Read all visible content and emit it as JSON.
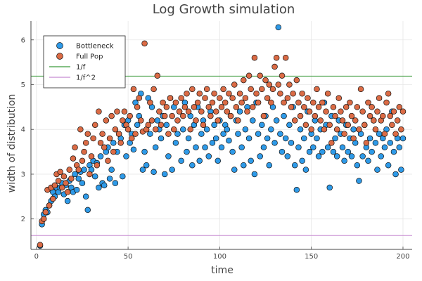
{
  "chart_data": {
    "type": "scatter",
    "title": "Log Growth simulation",
    "xlabel": "time",
    "ylabel": "width of distribution",
    "xlim": [
      -3,
      205
    ],
    "ylim": [
      1.32,
      6.42
    ],
    "x_ticks": [
      0,
      50,
      100,
      150,
      200
    ],
    "y_ticks": [
      2,
      3,
      4,
      5,
      6
    ],
    "grid": true,
    "legend_position": "top-left",
    "series": [
      {
        "name": "Bottleneck",
        "kind": "scatter",
        "color": "#2E9AE8",
        "x": [
          2,
          3,
          4,
          5,
          6,
          7,
          8,
          9,
          10,
          11,
          12,
          13,
          14,
          15,
          16,
          17,
          18,
          19,
          20,
          21,
          22,
          23,
          24,
          25,
          26,
          27,
          28,
          29,
          30,
          31,
          32,
          33,
          34,
          35,
          36,
          37,
          38,
          39,
          40,
          41,
          42,
          43,
          44,
          45,
          46,
          47,
          48,
          49,
          50,
          51,
          52,
          53,
          54,
          55,
          56,
          57,
          58,
          59,
          60,
          61,
          62,
          63,
          64,
          65,
          66,
          67,
          68,
          69,
          70,
          71,
          72,
          73,
          74,
          75,
          76,
          77,
          78,
          79,
          80,
          81,
          82,
          83,
          84,
          85,
          86,
          87,
          88,
          89,
          90,
          91,
          92,
          93,
          94,
          95,
          96,
          97,
          98,
          99,
          100,
          101,
          102,
          103,
          104,
          105,
          106,
          107,
          108,
          109,
          110,
          111,
          112,
          113,
          114,
          115,
          116,
          117,
          118,
          119,
          120,
          121,
          122,
          123,
          124,
          125,
          126,
          127,
          128,
          129,
          130,
          131,
          132,
          133,
          134,
          135,
          136,
          137,
          138,
          139,
          140,
          141,
          142,
          143,
          144,
          145,
          146,
          147,
          148,
          149,
          150,
          151,
          152,
          153,
          154,
          155,
          156,
          157,
          158,
          159,
          160,
          161,
          162,
          163,
          164,
          165,
          166,
          167,
          168,
          169,
          170,
          171,
          172,
          173,
          174,
          175,
          176,
          177,
          178,
          179,
          180,
          181,
          182,
          183,
          184,
          185,
          186,
          187,
          188,
          189,
          190,
          191,
          192,
          193,
          194,
          195,
          196,
          197,
          198,
          199,
          200
        ],
        "y": [
          1.4,
          1.88,
          2.1,
          2.2,
          2.15,
          2.3,
          2.4,
          2.6,
          2.5,
          2.7,
          2.6,
          2.7,
          2.8,
          2.55,
          2.75,
          2.4,
          2.85,
          2.7,
          2.6,
          3.0,
          2.65,
          2.9,
          3.05,
          2.8,
          3.1,
          2.5,
          2.2,
          3.2,
          3.1,
          3.3,
          2.95,
          3.25,
          2.7,
          3.4,
          2.8,
          2.75,
          3.5,
          3.6,
          2.9,
          3.1,
          3.7,
          2.8,
          3.5,
          3.9,
          3.8,
          2.95,
          4.1,
          3.4,
          4.2,
          3.7,
          3.9,
          3.55,
          4.6,
          4.1,
          4.3,
          4.8,
          3.1,
          3.5,
          3.2,
          4.7,
          3.9,
          4.5,
          3.05,
          3.6,
          4.2,
          4.0,
          3.8,
          4.3,
          3.0,
          4.1,
          3.4,
          4.7,
          3.1,
          4.5,
          3.7,
          3.9,
          4.4,
          3.3,
          4.0,
          4.6,
          3.5,
          3.8,
          4.3,
          3.2,
          4.1,
          3.6,
          4.5,
          3.3,
          3.9,
          4.2,
          3.6,
          4.0,
          3.4,
          4.4,
          3.7,
          4.1,
          3.8,
          3.3,
          4.2,
          3.6,
          3.9,
          4.1,
          4.0,
          3.75,
          4.3,
          3.5,
          3.1,
          4.2,
          3.9,
          4.4,
          3.6,
          3.2,
          4.0,
          4.5,
          3.8,
          3.3,
          4.2,
          3.0,
          4.6,
          3.9,
          3.4,
          4.1,
          3.6,
          4.3,
          3.8,
          3.2,
          4.0,
          4.5,
          3.7,
          4.2,
          6.28,
          3.9,
          3.5,
          4.3,
          3.8,
          3.4,
          4.1,
          3.7,
          4.5,
          3.2,
          2.65,
          3.6,
          4.0,
          3.3,
          3.8,
          3.1,
          4.4,
          3.5,
          3.9,
          3.6,
          4.2,
          3.8,
          3.4,
          4.0,
          3.5,
          4.6,
          4.1,
          3.6,
          2.7,
          4.3,
          3.5,
          3.8,
          3.4,
          4.2,
          3.9,
          3.6,
          3.3,
          4.1,
          3.5,
          3.8,
          3.4,
          4.0,
          3.7,
          3.2,
          2.85,
          3.9,
          3.4,
          4.1,
          3.6,
          3.3,
          3.8,
          3.5,
          4.2,
          3.7,
          3.1,
          3.9,
          3.4,
          3.8,
          3.6,
          4.0,
          3.2,
          3.7,
          4.4,
          3.5,
          3.0,
          3.8,
          3.6,
          3.1,
          3.8
        ]
      },
      {
        "name": "Full Pop",
        "kind": "scatter",
        "color": "#DB6B45",
        "x": [
          2,
          3,
          4,
          5,
          6,
          7,
          8,
          9,
          10,
          11,
          12,
          13,
          14,
          15,
          16,
          17,
          18,
          19,
          20,
          21,
          22,
          23,
          24,
          25,
          26,
          27,
          28,
          29,
          30,
          31,
          32,
          33,
          34,
          35,
          36,
          37,
          38,
          39,
          40,
          41,
          42,
          43,
          44,
          45,
          46,
          47,
          48,
          49,
          50,
          51,
          52,
          53,
          54,
          55,
          56,
          57,
          58,
          59,
          60,
          61,
          62,
          63,
          64,
          65,
          66,
          67,
          68,
          69,
          70,
          71,
          72,
          73,
          74,
          75,
          76,
          77,
          78,
          79,
          80,
          81,
          82,
          83,
          84,
          85,
          86,
          87,
          88,
          89,
          90,
          91,
          92,
          93,
          94,
          95,
          96,
          97,
          98,
          99,
          100,
          101,
          102,
          103,
          104,
          105,
          106,
          107,
          108,
          109,
          110,
          111,
          112,
          113,
          114,
          115,
          116,
          117,
          118,
          119,
          120,
          121,
          122,
          123,
          124,
          125,
          126,
          127,
          128,
          129,
          130,
          131,
          132,
          133,
          134,
          135,
          136,
          137,
          138,
          139,
          140,
          141,
          142,
          143,
          144,
          145,
          146,
          147,
          148,
          149,
          150,
          151,
          152,
          153,
          154,
          155,
          156,
          157,
          158,
          159,
          160,
          161,
          162,
          163,
          164,
          165,
          166,
          167,
          168,
          169,
          170,
          171,
          172,
          173,
          174,
          175,
          176,
          177,
          178,
          179,
          180,
          181,
          182,
          183,
          184,
          185,
          186,
          187,
          188,
          189,
          190,
          191,
          192,
          193,
          194,
          195,
          196,
          197,
          198,
          199,
          200
        ],
        "y": [
          1.42,
          1.95,
          2.0,
          2.15,
          2.65,
          2.3,
          2.7,
          2.45,
          2.75,
          3.0,
          2.85,
          3.05,
          2.7,
          2.95,
          2.8,
          2.6,
          3.1,
          2.9,
          3.35,
          3.6,
          3.2,
          3.1,
          4.0,
          3.3,
          3.5,
          3.7,
          3.9,
          3.0,
          3.4,
          3.8,
          4.1,
          3.2,
          4.4,
          3.7,
          3.9,
          3.6,
          4.2,
          3.3,
          3.8,
          4.3,
          3.5,
          4.0,
          4.4,
          3.9,
          3.7,
          4.2,
          4.4,
          4.1,
          4.0,
          4.3,
          3.8,
          4.9,
          3.9,
          4.5,
          4.7,
          4.2,
          3.95,
          5.92,
          4.0,
          4.1,
          4.6,
          4.2,
          4.9,
          4.0,
          5.2,
          4.4,
          4.1,
          4.6,
          4.3,
          4.5,
          3.9,
          4.7,
          4.3,
          4.0,
          4.6,
          4.2,
          4.4,
          4.7,
          4.3,
          4.5,
          4.8,
          4.4,
          4.0,
          4.9,
          4.5,
          4.2,
          4.6,
          4.8,
          4.4,
          4.1,
          4.7,
          4.9,
          4.5,
          4.3,
          4.6,
          4.8,
          4.4,
          4.2,
          4.7,
          4.5,
          4.9,
          4.6,
          4.4,
          4.8,
          4.3,
          4.7,
          5.0,
          4.5,
          4.2,
          4.8,
          4.6,
          5.1,
          4.7,
          4.4,
          5.2,
          4.9,
          4.5,
          5.6,
          4.8,
          4.6,
          5.2,
          4.9,
          4.3,
          5.1,
          4.7,
          5.0,
          4.6,
          4.9,
          5.4,
          5.6,
          5.0,
          4.8,
          5.2,
          4.6,
          5.6,
          4.7,
          5.0,
          4.5,
          4.8,
          4.2,
          5.1,
          4.6,
          4.3,
          4.8,
          4.5,
          4.1,
          4.7,
          4.4,
          4.0,
          4.6,
          4.3,
          4.9,
          4.5,
          4.2,
          4.6,
          4.0,
          4.4,
          4.8,
          4.1,
          3.7,
          4.5,
          4.3,
          4.0,
          4.7,
          4.4,
          4.2,
          3.9,
          4.5,
          4.1,
          4.6,
          4.3,
          3.8,
          4.2,
          4.5,
          4.0,
          4.9,
          4.4,
          4.1,
          3.7,
          4.6,
          4.3,
          4.5,
          4.2,
          4.0,
          4.4,
          4.7,
          4.2,
          4.3,
          3.9,
          4.6,
          4.8,
          4.3,
          4.1,
          4.4,
          3.9,
          4.2,
          4.5,
          4.0,
          4.4
        ]
      },
      {
        "name": "1/f",
        "kind": "hline",
        "color": "#3A9A3A",
        "value": 5.19
      },
      {
        "name": "1/f^2",
        "kind": "hline",
        "color": "#C78BD2",
        "value": 1.63
      }
    ]
  }
}
